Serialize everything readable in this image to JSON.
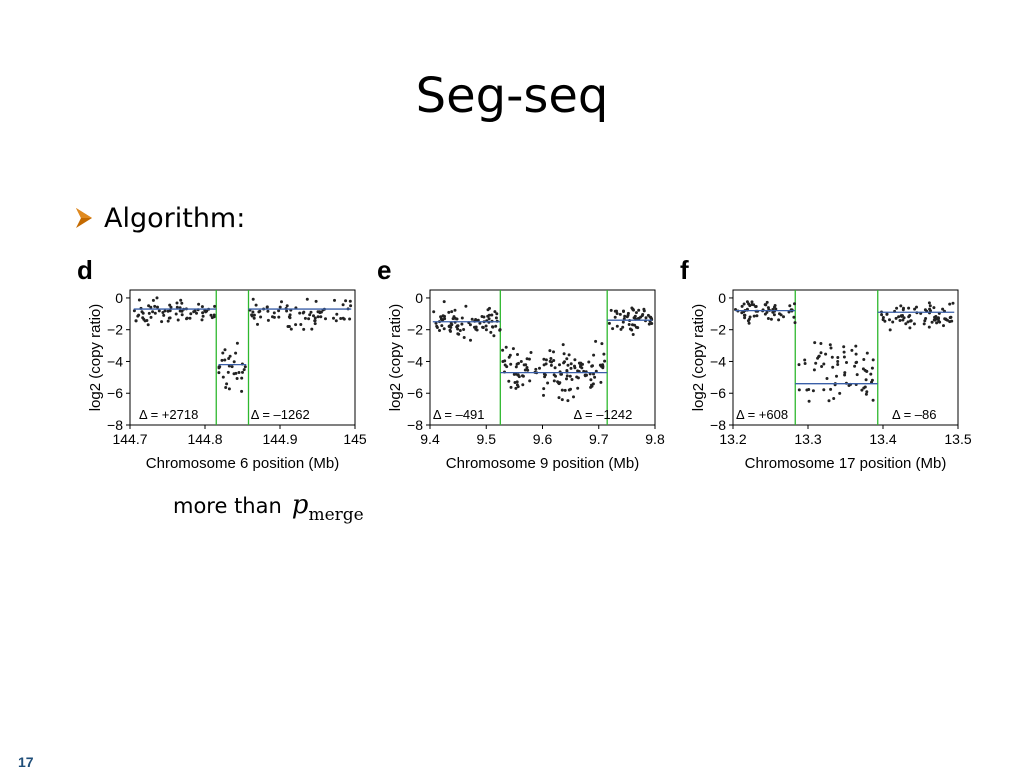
{
  "slide": {
    "title": "Seg-seq",
    "bullet": "Algorithm:",
    "bottom_text": "more than",
    "pmerge_symbol": "p",
    "pmerge_subscript": "merge",
    "page_number": "17",
    "bullet_color": "#c46a00"
  },
  "chart_data": [
    {
      "type": "scatter",
      "panel_label": "d",
      "xlabel": "Chromosome 6 position (Mb)",
      "ylabel": "log2 (copy ratio)",
      "xlim": [
        144.7,
        145.0
      ],
      "ylim": [
        -8,
        0.5
      ],
      "xticks": [
        144.7,
        144.8,
        144.9,
        145.0
      ],
      "xtick_labels": [
        "144.7",
        "144.8",
        "144.9",
        "145"
      ],
      "yticks": [
        0,
        -2,
        -4,
        -6,
        -8
      ],
      "boundaries": [
        144.815,
        144.858
      ],
      "segments": [
        {
          "x0": 144.705,
          "x1": 144.815,
          "y": -0.7
        },
        {
          "x0": 144.818,
          "x1": 144.855,
          "y": -4.2
        },
        {
          "x0": 144.858,
          "x1": 144.995,
          "y": -0.7
        }
      ],
      "deltas": [
        {
          "text": "Δ = +2718",
          "x": 144.712
        },
        {
          "text": "Δ = –1262",
          "x": 144.861
        }
      ],
      "clusters": [
        {
          "x0": 144.705,
          "x1": 144.815,
          "ymin": -2.2,
          "ymax": 0.3,
          "n": 70
        },
        {
          "x0": 144.818,
          "x1": 144.855,
          "ymin": -6.8,
          "ymax": -2.0,
          "n": 30
        },
        {
          "x0": 144.858,
          "x1": 144.995,
          "ymin": -2.2,
          "ymax": 0.3,
          "n": 75
        }
      ],
      "seed": 7
    },
    {
      "type": "scatter",
      "panel_label": "e",
      "xlabel": "Chromosome 9 position (Mb)",
      "ylabel": "log2 (copy ratio)",
      "xlim": [
        9.4,
        9.8
      ],
      "ylim": [
        -8,
        0.5
      ],
      "xticks": [
        9.4,
        9.5,
        9.6,
        9.7,
        9.8
      ],
      "xtick_labels": [
        "9.4",
        "9.5",
        "9.6",
        "9.7",
        "9.8"
      ],
      "yticks": [
        0,
        -2,
        -4,
        -6,
        -8
      ],
      "boundaries": [
        9.525,
        9.715
      ],
      "segments": [
        {
          "x0": 9.405,
          "x1": 9.525,
          "y": -1.5
        },
        {
          "x0": 9.525,
          "x1": 9.715,
          "y": -4.7
        },
        {
          "x0": 9.715,
          "x1": 9.795,
          "y": -1.4
        }
      ],
      "deltas": [
        {
          "text": "Δ = –491",
          "x": 9.405
        },
        {
          "text": "Δ = –1242",
          "x": 9.655
        }
      ],
      "clusters": [
        {
          "x0": 9.405,
          "x1": 9.525,
          "ymin": -3.0,
          "ymax": 0.0,
          "n": 85
        },
        {
          "x0": 9.528,
          "x1": 9.712,
          "ymin": -7.0,
          "ymax": -2.0,
          "n": 140
        },
        {
          "x0": 9.718,
          "x1": 9.795,
          "ymin": -2.8,
          "ymax": 0.0,
          "n": 55
        }
      ],
      "seed": 19
    },
    {
      "type": "scatter",
      "panel_label": "f",
      "xlabel": "Chromosome 17 position (Mb)",
      "ylabel": "log2 (copy ratio)",
      "xlim": [
        13.2,
        13.5
      ],
      "ylim": [
        -8,
        0.5
      ],
      "xticks": [
        13.2,
        13.3,
        13.4,
        13.5
      ],
      "xtick_labels": [
        "13.2",
        "13.3",
        "13.4",
        "13.5"
      ],
      "yticks": [
        0,
        -2,
        -4,
        -6,
        -8
      ],
      "boundaries": [
        13.283,
        13.393
      ],
      "segments": [
        {
          "x0": 13.203,
          "x1": 13.283,
          "y": -0.8
        },
        {
          "x0": 13.283,
          "x1": 13.393,
          "y": -5.4
        },
        {
          "x0": 13.393,
          "x1": 13.495,
          "y": -0.9
        }
      ],
      "deltas": [
        {
          "text": "Δ = +608",
          "x": 13.204
        },
        {
          "text": "Δ = –86",
          "x": 13.412
        }
      ],
      "clusters": [
        {
          "x0": 13.203,
          "x1": 13.283,
          "ymin": -1.8,
          "ymax": 0.1,
          "n": 60
        },
        {
          "x0": 13.286,
          "x1": 13.39,
          "ymin": -7.2,
          "ymax": -2.0,
          "n": 70
        },
        {
          "x0": 13.396,
          "x1": 13.495,
          "ymin": -2.2,
          "ymax": 0.1,
          "n": 75
        }
      ],
      "seed": 31
    }
  ],
  "colors": {
    "points": "#222222",
    "segment_line": "#3a5fa8",
    "boundary_line": "#2eb82e",
    "axis": "#000000"
  }
}
